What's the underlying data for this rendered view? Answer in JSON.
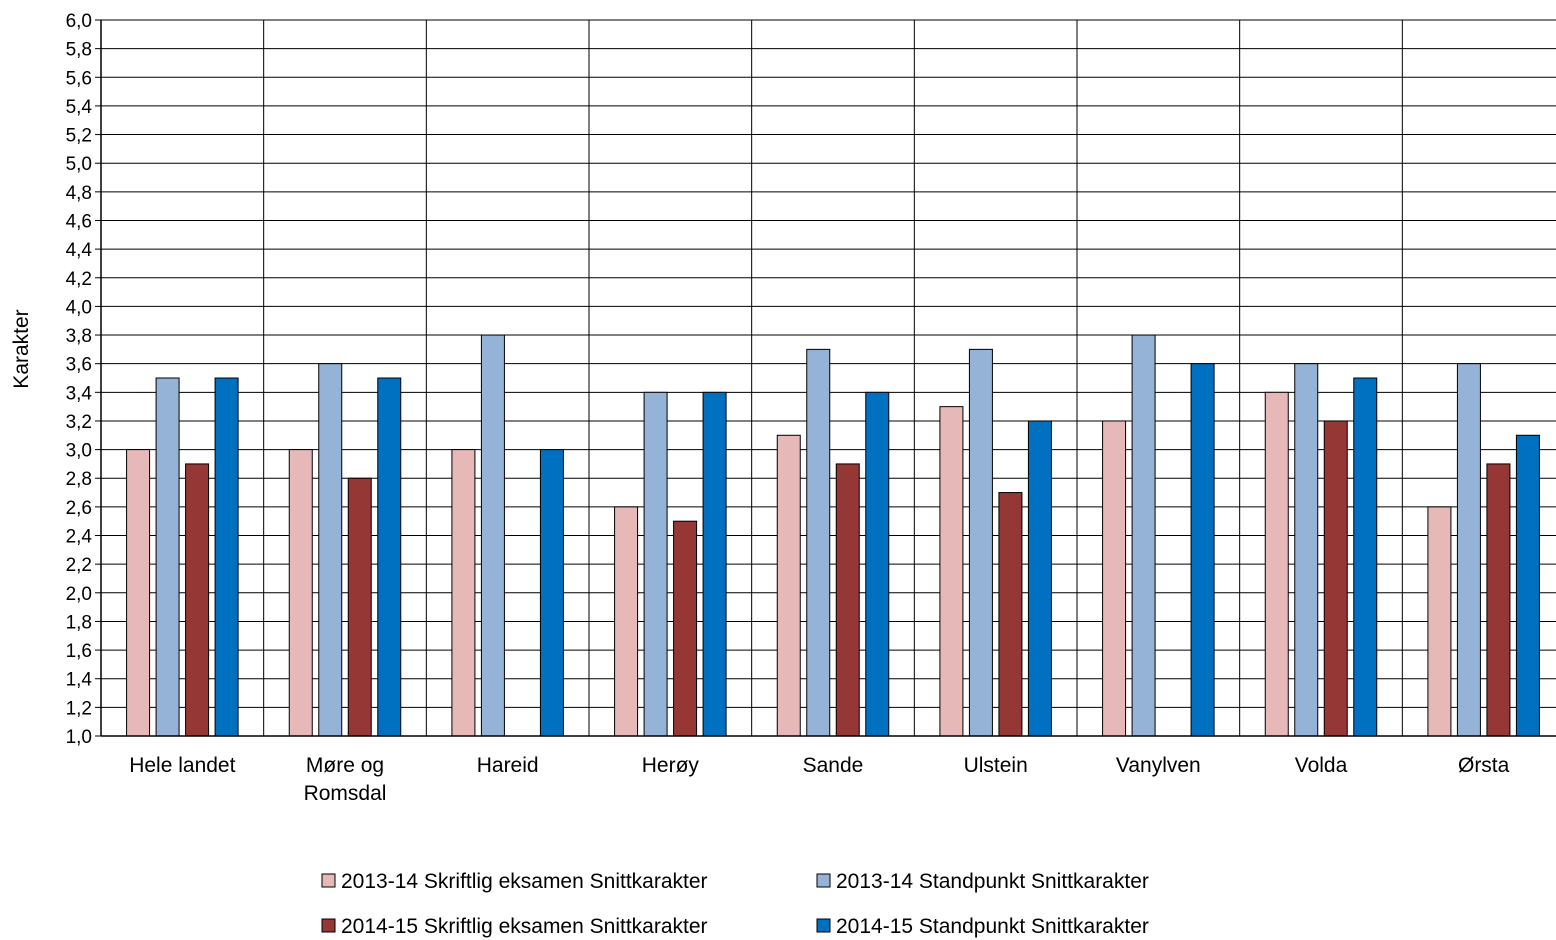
{
  "chart_data": {
    "type": "bar",
    "title": "",
    "xlabel": "",
    "ylabel": "Karakter",
    "ylim": [
      1.0,
      6.0
    ],
    "ytick_step": 0.2,
    "grid": true,
    "legend_position": "bottom",
    "categories": [
      [
        "Hele landet"
      ],
      [
        "Møre og",
        "Romsdal"
      ],
      [
        "Hareid"
      ],
      [
        "Herøy"
      ],
      [
        "Sande"
      ],
      [
        "Ulstein"
      ],
      [
        "Vanylven"
      ],
      [
        "Volda"
      ],
      [
        "Ørsta"
      ]
    ],
    "series": [
      {
        "name": "2013-14 Skriftlig eksamen Snittkarakter",
        "color": "#e6b9b8",
        "values": [
          3.0,
          3.0,
          3.0,
          2.6,
          3.1,
          3.3,
          3.2,
          3.4,
          2.6
        ]
      },
      {
        "name": "2013-14 Standpunkt Snittkarakter",
        "color": "#95b3d7",
        "values": [
          3.5,
          3.6,
          3.8,
          3.4,
          3.7,
          3.7,
          3.8,
          3.6,
          3.6
        ]
      },
      {
        "name": "2014-15 Skriftlig eksamen Snittkarakter",
        "color": "#953735",
        "values": [
          2.9,
          2.8,
          null,
          2.5,
          2.9,
          2.7,
          null,
          3.2,
          2.9
        ]
      },
      {
        "name": "2014-15 Standpunkt Snittkarakter",
        "color": "#0070c0",
        "values": [
          3.5,
          3.5,
          3.0,
          3.4,
          3.4,
          3.2,
          3.6,
          3.5,
          3.1
        ]
      }
    ]
  }
}
